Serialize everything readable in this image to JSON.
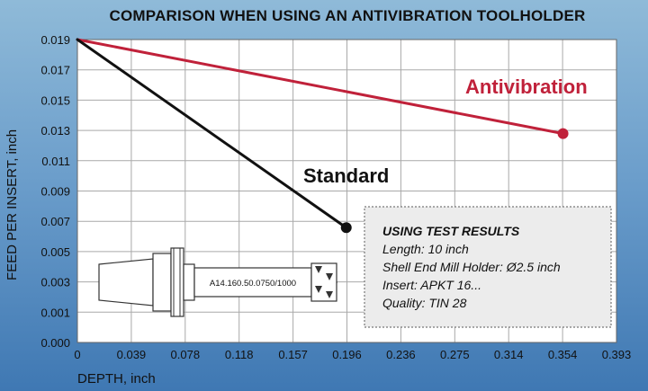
{
  "chart_data": {
    "type": "line",
    "title": "COMPARISON WHEN USING AN ANTIVIBRATION TOOLHOLDER",
    "xlabel": "DEPTH, inch",
    "ylabel": "FEED PER INSERT, inch",
    "x_ticks": [
      "0",
      "0.039",
      "0.078",
      "0.118",
      "0.157",
      "0.196",
      "0.236",
      "0.275",
      "0.314",
      "0.354",
      "0.393"
    ],
    "y_ticks": [
      "0.000",
      "0.001",
      "0.003",
      "0.005",
      "0.007",
      "0.009",
      "0.011",
      "0.013",
      "0.015",
      "0.017",
      "0.019"
    ],
    "xlim": [
      0,
      0.393
    ],
    "ylim": [
      0,
      0.019
    ],
    "grid": true,
    "series": [
      {
        "name": "Antivibration",
        "color": "#c0213a",
        "x": [
          0,
          0.354
        ],
        "y": [
          0.019,
          0.0131
        ]
      },
      {
        "name": "Standard",
        "color": "#111111",
        "x": [
          0,
          0.196
        ],
        "y": [
          0.019,
          0.0072
        ]
      }
    ]
  },
  "info_box": {
    "title": "USING TEST RESULTS",
    "lines": [
      "Length: 10 inch",
      "Shell End Mill Holder: Ø2.5 inch",
      "Insert: APKT 16...",
      "Quality: TIN 28"
    ]
  },
  "tool_label": "A14.160.50.0750/1000"
}
